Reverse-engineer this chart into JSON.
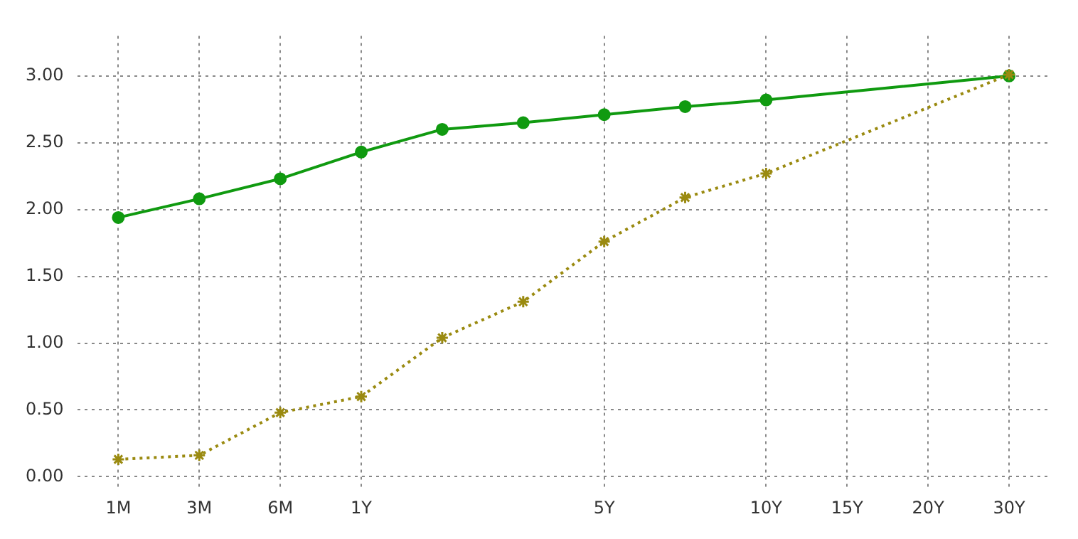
{
  "chart_data": {
    "type": "line",
    "categories": [
      "1M",
      "3M",
      "6M",
      "1Y",
      null,
      null,
      "5Y",
      null,
      "10Y",
      "15Y",
      "20Y",
      "30Y"
    ],
    "series": [
      {
        "color": "#109a10",
        "marker": "circle",
        "line_style": "solid",
        "values": [
          1.94,
          2.08,
          2.23,
          2.43,
          2.6,
          2.65,
          2.71,
          2.77,
          2.82,
          null,
          null,
          3.0
        ]
      },
      {
        "color": "#9a8a10",
        "marker": "cross",
        "line_style": "dotted",
        "values": [
          0.13,
          0.16,
          0.48,
          0.6,
          1.04,
          1.31,
          1.76,
          2.09,
          2.27,
          null,
          null,
          3.01
        ]
      }
    ],
    "ylim": [
      -0.1,
      3.3
    ],
    "yticks": [
      {
        "value": 0,
        "label": "0.00"
      },
      {
        "value": 0.5,
        "label": "0.50"
      },
      {
        "value": 1,
        "label": "1.00"
      },
      {
        "value": 1.5,
        "label": "1.50"
      },
      {
        "value": 2,
        "label": "2.00"
      },
      {
        "value": 2.5,
        "label": "2.50"
      },
      {
        "value": 3,
        "label": "3.00"
      }
    ],
    "grid": true,
    "legend": false
  }
}
